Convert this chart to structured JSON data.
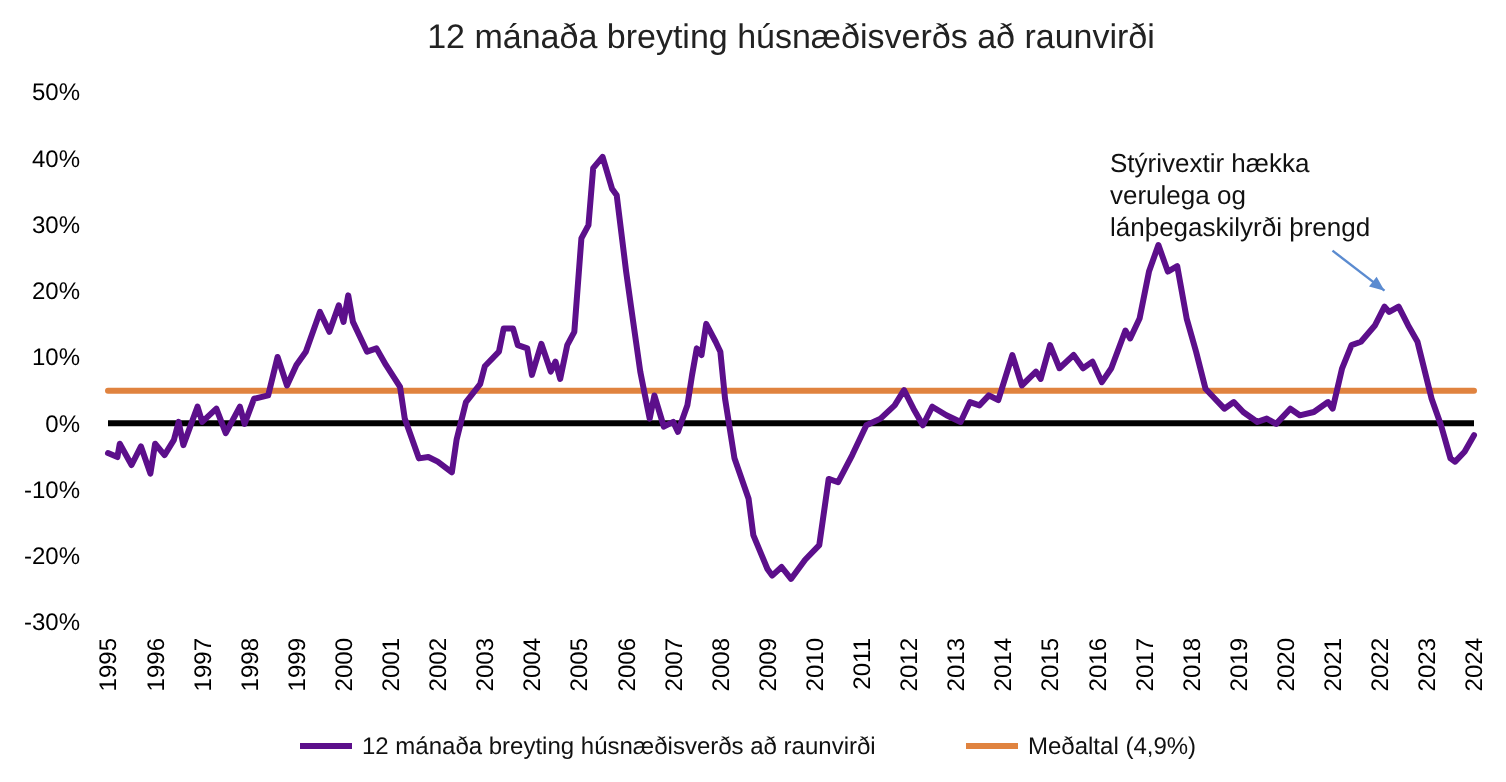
{
  "chart_data": {
    "type": "line",
    "title": "12 mánaða breyting húsnæðisverðs að raunvirði",
    "xlim": [
      1995,
      2024
    ],
    "xticks": [
      1995,
      1996,
      1997,
      1998,
      1999,
      2000,
      2001,
      2002,
      2003,
      2004,
      2005,
      2006,
      2007,
      2008,
      2009,
      2010,
      2011,
      2012,
      2013,
      2014,
      2015,
      2016,
      2017,
      2018,
      2019,
      2020,
      2021,
      2022,
      2023,
      2024
    ],
    "ylim": [
      -30,
      50
    ],
    "yticks": [
      {
        "value": -30,
        "label": "-30%"
      },
      {
        "value": -20,
        "label": "-20%"
      },
      {
        "value": -10,
        "label": "-10%"
      },
      {
        "value": 0,
        "label": "0%"
      },
      {
        "value": 10,
        "label": "10%"
      },
      {
        "value": 20,
        "label": "20%"
      },
      {
        "value": 30,
        "label": "30%"
      },
      {
        "value": 40,
        "label": "40%"
      },
      {
        "value": 50,
        "label": "50%"
      }
    ],
    "grid": false,
    "legend": "bottom",
    "ref_lines": [
      {
        "axis": "y",
        "value": 0,
        "color": "#000000"
      }
    ],
    "annotations": [
      {
        "text": "Stýrivextir hækka\nverulega og\nlánþegaskilyrði þrengd",
        "x": 2022.1,
        "y": 17.6
      }
    ],
    "series": [
      {
        "name": "12 mánaða breyting húsnæðisverðs að raunvirði",
        "color": "#5c0f8b",
        "x": [
          1995.0,
          1995.2,
          1995.25,
          1995.5,
          1995.7,
          1995.9,
          1996.0,
          1996.2,
          1996.4,
          1996.5,
          1996.6,
          1996.9,
          1997.0,
          1997.3,
          1997.5,
          1997.8,
          1997.9,
          1998.1,
          1998.4,
          1998.6,
          1998.8,
          1999.0,
          1999.2,
          1999.5,
          1999.7,
          1999.9,
          2000.0,
          2000.1,
          2000.2,
          2000.5,
          2000.7,
          2000.9,
          2001.2,
          2001.3,
          2001.6,
          2001.8,
          2002.0,
          2002.3,
          2002.4,
          2002.6,
          2002.9,
          2003.0,
          2003.3,
          2003.4,
          2003.6,
          2003.7,
          2003.9,
          2004.0,
          2004.2,
          2004.4,
          2004.5,
          2004.6,
          2004.75,
          2004.9,
          2005.05,
          2005.2,
          2005.3,
          2005.5,
          2005.7,
          2005.8,
          2006.0,
          2006.1,
          2006.3,
          2006.4,
          2006.5,
          2006.6,
          2006.8,
          2007.0,
          2007.1,
          2007.3,
          2007.4,
          2007.5,
          2007.6,
          2007.7,
          2007.9,
          2008.0,
          2008.1,
          2008.3,
          2008.6,
          2008.7,
          2009.0,
          2009.1,
          2009.3,
          2009.5,
          2009.8,
          2010.1,
          2010.3,
          2010.5,
          2010.8,
          2011.1,
          2011.4,
          2011.7,
          2011.9,
          2012.1,
          2012.3,
          2012.5,
          2012.8,
          2013.1,
          2013.3,
          2013.5,
          2013.7,
          2013.9,
          2014.2,
          2014.4,
          2014.7,
          2014.8,
          2015.0,
          2015.2,
          2015.5,
          2015.7,
          2015.9,
          2016.1,
          2016.3,
          2016.6,
          2016.7,
          2016.9,
          2017.1,
          2017.3,
          2017.5,
          2017.7,
          2017.9,
          2018.1,
          2018.3,
          2018.5,
          2018.7,
          2018.9,
          2019.1,
          2019.4,
          2019.6,
          2019.8,
          2020.1,
          2020.3,
          2020.6,
          2020.9,
          2021.0,
          2021.2,
          2021.4,
          2021.6,
          2021.9,
          2022.1,
          2022.2,
          2022.4,
          2022.6,
          2022.8,
          2023.1,
          2023.3,
          2023.5,
          2023.6,
          2023.8,
          2024.0
        ],
        "values": [
          -4.5,
          -5.1,
          -3.1,
          -6.3,
          -3.5,
          -7.6,
          -3.1,
          -4.8,
          -2.5,
          0.2,
          -3.3,
          2.5,
          0.2,
          2.2,
          -1.5,
          2.5,
          -0.1,
          3.7,
          4.2,
          10.0,
          5.7,
          8.8,
          10.8,
          16.8,
          13.8,
          17.8,
          15.3,
          19.3,
          15.3,
          10.8,
          11.3,
          8.8,
          5.5,
          0.7,
          -5.3,
          -5.1,
          -5.8,
          -7.4,
          -2.5,
          3.2,
          5.9,
          8.6,
          10.8,
          14.3,
          14.3,
          11.8,
          11.3,
          7.3,
          12.0,
          7.8,
          9.3,
          6.7,
          11.8,
          13.8,
          27.9,
          29.9,
          38.5,
          40.2,
          35.4,
          34.4,
          22.9,
          17.8,
          7.8,
          4.2,
          0.7,
          4.2,
          -0.5,
          0.2,
          -1.3,
          2.7,
          7.3,
          11.3,
          10.3,
          15.0,
          12.3,
          10.8,
          3.7,
          -5.3,
          -11.4,
          -16.9,
          -22.0,
          -23.0,
          -21.7,
          -23.5,
          -20.6,
          -18.4,
          -8.4,
          -8.9,
          -4.8,
          -0.3,
          0.7,
          2.7,
          5.0,
          2.2,
          -0.3,
          2.5,
          1.2,
          0.2,
          3.2,
          2.7,
          4.2,
          3.5,
          10.3,
          5.7,
          7.8,
          6.7,
          11.8,
          8.3,
          10.3,
          8.3,
          9.3,
          6.2,
          8.3,
          14.0,
          12.8,
          15.8,
          22.9,
          26.9,
          22.9,
          23.7,
          15.8,
          10.8,
          5.2,
          3.7,
          2.2,
          3.2,
          1.7,
          0.2,
          0.7,
          -0.1,
          2.2,
          1.2,
          1.7,
          3.2,
          2.2,
          8.3,
          11.8,
          12.3,
          14.8,
          17.6,
          16.8,
          17.6,
          14.8,
          12.3,
          3.7,
          -0.3,
          -5.3,
          -5.8,
          -4.3,
          -1.8
        ]
      },
      {
        "name": "Meðaltal (4,9%)",
        "color": "#e0833f",
        "x": [
          1995,
          2024
        ],
        "values": [
          4.9,
          4.9
        ]
      }
    ]
  }
}
